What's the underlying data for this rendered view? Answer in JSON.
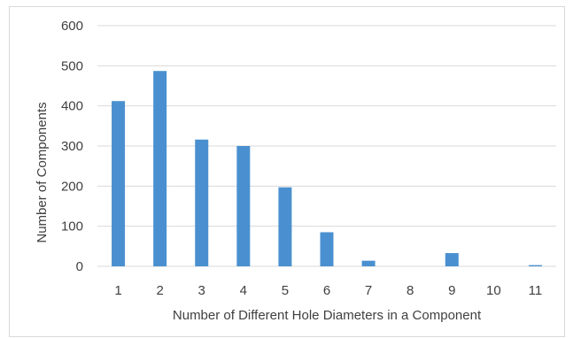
{
  "chart_data": {
    "type": "bar",
    "title": "",
    "xlabel": "Number of Different Hole Diameters in a Component",
    "ylabel": "Number of Components",
    "categories": [
      "1",
      "2",
      "3",
      "4",
      "5",
      "6",
      "7",
      "8",
      "9",
      "10",
      "11"
    ],
    "values": [
      412,
      487,
      316,
      300,
      197,
      85,
      14,
      0,
      33,
      0,
      3
    ],
    "ylim": [
      0,
      600
    ],
    "yticks": [
      "0",
      "100",
      "200",
      "300",
      "400",
      "500",
      "600"
    ],
    "grid": true,
    "legend": "none",
    "colors": {
      "bar": "#4a90d0",
      "grid": "#d9d9d9",
      "text": "#404040"
    }
  }
}
